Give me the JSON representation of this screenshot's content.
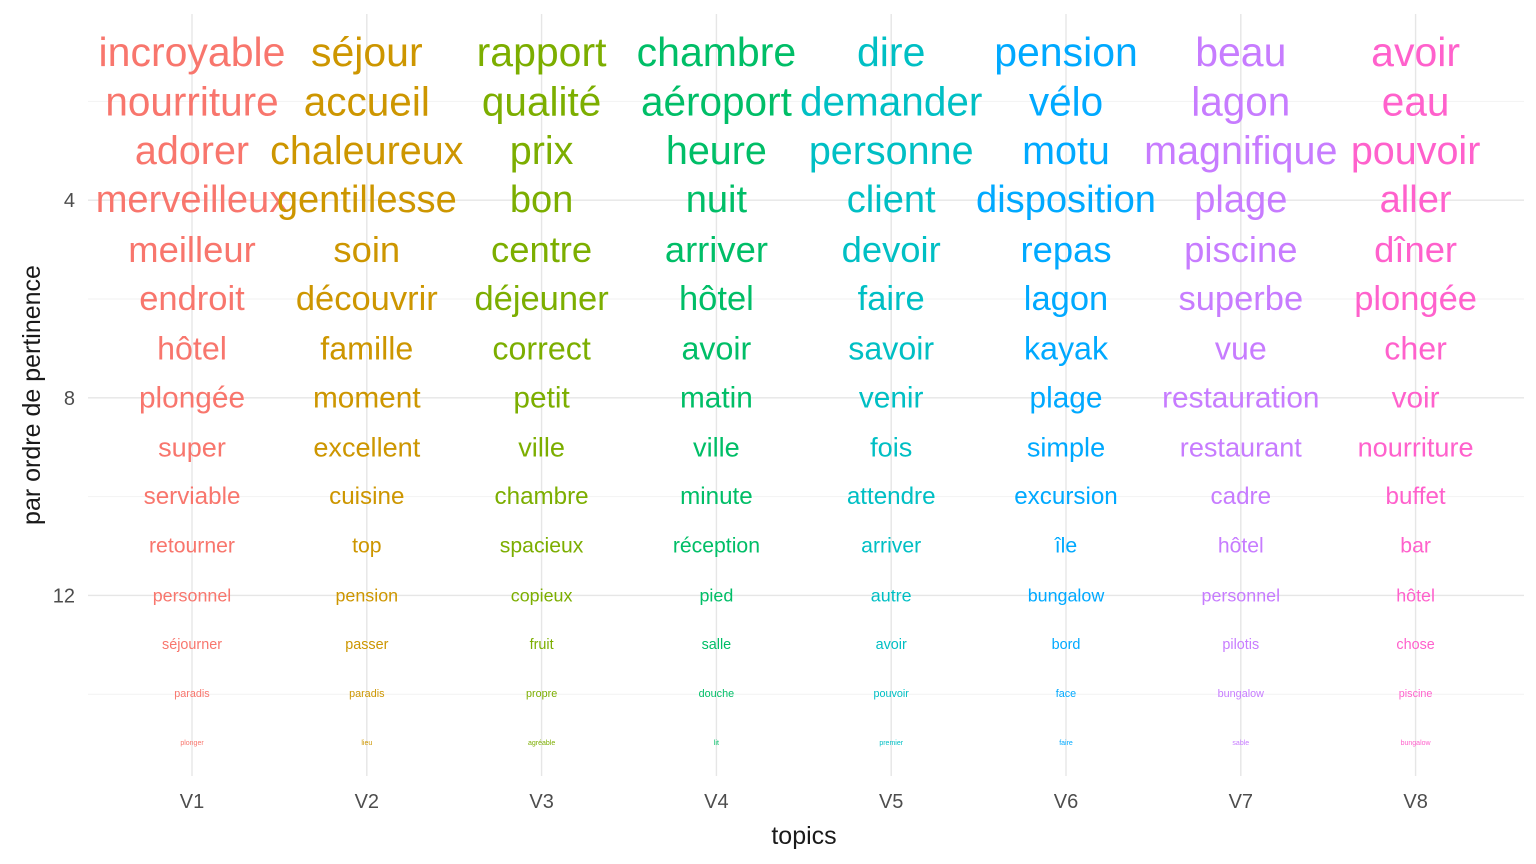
{
  "chart_data": {
    "type": "scatter",
    "xlabel": "topics",
    "ylabel": "par ordre de pertinence",
    "categories": [
      "V1",
      "V2",
      "V3",
      "V4",
      "V5",
      "V6",
      "V7",
      "V8"
    ],
    "y_ticks": [
      4,
      8,
      12
    ],
    "ylim": [
      0.5,
      16.7
    ],
    "y_reversed": true,
    "grid": true,
    "legend": "none",
    "size_encodes_rank": true,
    "colors": [
      "#F8766D",
      "#CD9600",
      "#7CAE00",
      "#00BE67",
      "#00BFC4",
      "#00A9FF",
      "#C77CFF",
      "#FF61CC"
    ],
    "series": [
      {
        "category": "V1",
        "words": [
          "incroyable",
          "nourriture",
          "adorer",
          "merveilleux",
          "meilleur",
          "endroit",
          "hôtel",
          "plongée",
          "super",
          "serviable",
          "retourner",
          "personnel",
          "séjourner",
          "paradis",
          "plonger"
        ]
      },
      {
        "category": "V2",
        "words": [
          "séjour",
          "accueil",
          "chaleureux",
          "gentillesse",
          "soin",
          "découvrir",
          "famille",
          "moment",
          "excellent",
          "cuisine",
          "top",
          "pension",
          "passer",
          "paradis",
          "lieu"
        ]
      },
      {
        "category": "V3",
        "words": [
          "rapport",
          "qualité",
          "prix",
          "bon",
          "centre",
          "déjeuner",
          "correct",
          "petit",
          "ville",
          "chambre",
          "spacieux",
          "copieux",
          "fruit",
          "propre",
          "agréable"
        ]
      },
      {
        "category": "V4",
        "words": [
          "chambre",
          "aéroport",
          "heure",
          "nuit",
          "arriver",
          "hôtel",
          "avoir",
          "matin",
          "ville",
          "minute",
          "réception",
          "pied",
          "salle",
          "douche",
          "lit"
        ]
      },
      {
        "category": "V5",
        "words": [
          "dire",
          "demander",
          "personne",
          "client",
          "devoir",
          "faire",
          "savoir",
          "venir",
          "fois",
          "attendre",
          "arriver",
          "autre",
          "avoir",
          "pouvoir",
          "premier"
        ]
      },
      {
        "category": "V6",
        "words": [
          "pension",
          "vélo",
          "motu",
          "disposition",
          "repas",
          "lagon",
          "kayak",
          "plage",
          "simple",
          "excursion",
          "île",
          "bungalow",
          "bord",
          "face",
          "faire"
        ]
      },
      {
        "category": "V7",
        "words": [
          "beau",
          "lagon",
          "magnifique",
          "plage",
          "piscine",
          "superbe",
          "vue",
          "restauration",
          "restaurant",
          "cadre",
          "hôtel",
          "personnel",
          "pilotis",
          "bungalow",
          "sable"
        ]
      },
      {
        "category": "V8",
        "words": [
          "avoir",
          "eau",
          "pouvoir",
          "aller",
          "dîner",
          "plongée",
          "cher",
          "voir",
          "nourriture",
          "buffet",
          "bar",
          "hôtel",
          "chose",
          "piscine",
          "bungalow"
        ]
      }
    ]
  }
}
